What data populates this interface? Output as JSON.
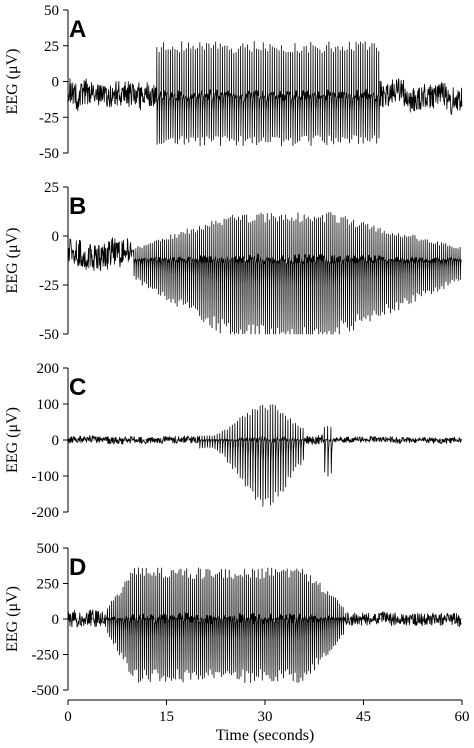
{
  "chart_data": [
    {
      "type": "line",
      "panel_label": "A",
      "ylabel": "EEG (μV)",
      "ylim": [
        -50,
        50
      ],
      "yticks": [
        50,
        25,
        0,
        -25,
        -50
      ],
      "xlim": [
        0,
        60
      ],
      "series": [
        {
          "segments": [
            {
              "t_start": 0,
              "t_end": 13.5,
              "kind": "noise",
              "amplitude": 9,
              "baseline": -8,
              "drift": 4
            },
            {
              "t_start": 13.5,
              "t_end": 47.5,
              "kind": "spike-wave",
              "freq_hz": 2.9,
              "peak": 28,
              "trough": -45,
              "baseline": -10
            },
            {
              "t_start": 47.5,
              "t_end": 60,
              "kind": "noise",
              "amplitude": 9,
              "baseline": -9,
              "drift": 4
            }
          ]
        }
      ]
    },
    {
      "type": "line",
      "panel_label": "B",
      "ylabel": "EEG (μV)",
      "ylim": [
        -50,
        25
      ],
      "yticks": [
        25,
        0,
        -25,
        -50
      ],
      "xlim": [
        0,
        60
      ],
      "series": [
        {
          "segments": [
            {
              "t_start": 0,
              "t_end": 10,
              "kind": "noise",
              "amplitude": 7,
              "baseline": -10,
              "drift": 3
            },
            {
              "t_start": 10,
              "t_end": 60,
              "kind": "spike-wave",
              "freq_hz": 3.2,
              "peak": 12,
              "trough": -54,
              "baseline": -12,
              "ramp_up_s": 15,
              "ramp_down_s": 20
            }
          ]
        }
      ]
    },
    {
      "type": "line",
      "panel_label": "C",
      "ylabel": "EEG (μV)",
      "ylim": [
        -200,
        200
      ],
      "yticks": [
        200,
        100,
        0,
        -100,
        -200
      ],
      "xlim": [
        0,
        60
      ],
      "series": [
        {
          "segments": [
            {
              "t_start": 0,
              "t_end": 20,
              "kind": "noise",
              "amplitude": 10,
              "baseline": 0,
              "drift": 2
            },
            {
              "t_start": 20,
              "t_end": 36,
              "kind": "spike-wave",
              "freq_hz": 2.6,
              "peak": 105,
              "trough": -195,
              "baseline": 0,
              "envelope": "bell",
              "center_s": 30
            },
            {
              "t_start": 36,
              "t_end": 39,
              "kind": "noise",
              "amplitude": 12,
              "baseline": 0,
              "drift": 2
            },
            {
              "t_start": 39,
              "t_end": 40.5,
              "kind": "spike-wave",
              "freq_hz": 2,
              "peak": 40,
              "trough": -110,
              "baseline": 0
            },
            {
              "t_start": 40.5,
              "t_end": 60,
              "kind": "noise",
              "amplitude": 8,
              "baseline": 0,
              "drift": 2
            }
          ]
        }
      ]
    },
    {
      "type": "line",
      "panel_label": "D",
      "ylabel": "EEG (μV)",
      "ylim": [
        -500,
        500
      ],
      "yticks": [
        500,
        250,
        0,
        -250,
        -500
      ],
      "xlim": [
        0,
        60
      ],
      "xlabel": "Time (seconds)",
      "xticks": [
        0,
        15,
        30,
        45,
        60
      ],
      "series": [
        {
          "segments": [
            {
              "t_start": 0,
              "t_end": 6,
              "kind": "noise",
              "amplitude": 60,
              "baseline": 0,
              "drift": 15
            },
            {
              "t_start": 6,
              "t_end": 42,
              "kind": "spike-wave",
              "freq_hz": 3.4,
              "peak": 360,
              "trough": -450,
              "baseline": 0,
              "ramp_up_s": 4,
              "ramp_down_s": 6
            },
            {
              "t_start": 42,
              "t_end": 60,
              "kind": "noise",
              "amplitude": 45,
              "baseline": 0,
              "drift": 12
            }
          ]
        }
      ]
    }
  ]
}
